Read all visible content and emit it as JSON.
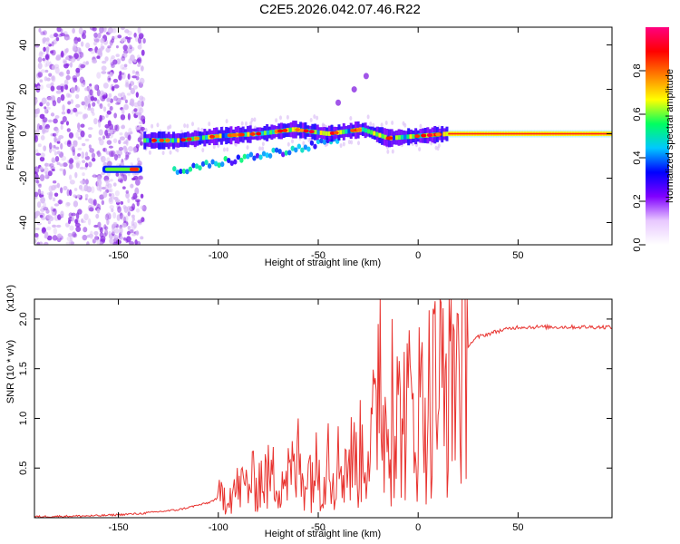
{
  "title": "C2E5.2026.042.07.46.R22",
  "chart_data": [
    {
      "type": "heatmap",
      "name": "spectrogram",
      "xlabel": "Height of straight line (km)",
      "ylabel": "Frequency (Hz)",
      "xlim": [
        -192,
        97
      ],
      "ylim": [
        -50,
        48
      ],
      "xticks": [
        -150,
        -100,
        -50,
        0,
        50
      ],
      "xtick_labels": [
        "-150",
        "-100",
        "-50",
        "0",
        "50"
      ],
      "yticks": [
        -40,
        -20,
        0,
        20,
        40
      ],
      "ytick_labels": [
        "-40",
        "-20",
        "0",
        "20",
        "40"
      ],
      "noise_region_x": [
        -192,
        -137
      ],
      "main_tone": [
        {
          "x": -137,
          "y": -3
        },
        {
          "x": -120,
          "y": -3
        },
        {
          "x": -100,
          "y": -1
        },
        {
          "x": -80,
          "y": 0
        },
        {
          "x": -62,
          "y": 2
        },
        {
          "x": -45,
          "y": 0
        },
        {
          "x": -28,
          "y": 2
        },
        {
          "x": -15,
          "y": -2
        },
        {
          "x": 0,
          "y": -1
        },
        {
          "x": 15,
          "y": 0
        },
        {
          "x": 97,
          "y": 0
        }
      ],
      "secondary_tone": [
        {
          "x": -120,
          "y": -17
        },
        {
          "x": -100,
          "y": -13
        },
        {
          "x": -80,
          "y": -10
        },
        {
          "x": -60,
          "y": -7
        },
        {
          "x": -42,
          "y": -3
        }
      ],
      "early_burst": {
        "x": [
          -158,
          -138
        ],
        "y": -16
      },
      "rising_feature": [
        {
          "x": -40,
          "y": 14
        },
        {
          "x": -32,
          "y": 20
        },
        {
          "x": -26,
          "y": 26
        }
      ],
      "colorbar": {
        "label": "Normalized spectral amplitude",
        "ticks": [
          "0.0",
          "0.2",
          "0.4",
          "0.6",
          "0.8"
        ],
        "range": [
          0,
          1
        ],
        "colors": [
          "#ffffff",
          "#e8c8ff",
          "#8000ff",
          "#0000ff",
          "#00c8ff",
          "#00ff60",
          "#ffff00",
          "#ff8000",
          "#ff0000",
          "#ff0080"
        ]
      }
    },
    {
      "type": "line",
      "name": "snr",
      "xlabel": "Height of straight line (km)",
      "ylabel": "SNR (10 * v/v)",
      "yscale_label": "(x10⁴)",
      "xlim": [
        -192,
        97
      ],
      "ylim": [
        0,
        2.2
      ],
      "xticks": [
        -150,
        -100,
        -50,
        0,
        50
      ],
      "xtick_labels": [
        "-150",
        "-100",
        "-50",
        "0",
        "50"
      ],
      "yticks": [
        0.5,
        1.0,
        1.5,
        2.0
      ],
      "ytick_labels": [
        "0.5",
        "1.0",
        "1.5",
        "2.0"
      ],
      "color": "#e8322e",
      "trend": [
        {
          "x": -192,
          "y": 0.01
        },
        {
          "x": -160,
          "y": 0.02
        },
        {
          "x": -140,
          "y": 0.04
        },
        {
          "x": -120,
          "y": 0.08
        },
        {
          "x": -105,
          "y": 0.15
        },
        {
          "x": -95,
          "y": 0.25
        },
        {
          "x": -80,
          "y": 0.38
        },
        {
          "x": -60,
          "y": 0.45
        },
        {
          "x": -45,
          "y": 0.5
        },
        {
          "x": -30,
          "y": 0.6
        },
        {
          "x": -20,
          "y": 0.9
        },
        {
          "x": -10,
          "y": 1.0
        },
        {
          "x": 0,
          "y": 1.1
        },
        {
          "x": 10,
          "y": 1.3
        },
        {
          "x": 20,
          "y": 1.65
        },
        {
          "x": 30,
          "y": 1.82
        },
        {
          "x": 40,
          "y": 1.88
        },
        {
          "x": 50,
          "y": 1.92
        },
        {
          "x": 97,
          "y": 1.92
        }
      ],
      "spikes": [
        {
          "x": -19,
          "y": 2.2
        },
        {
          "x": -13,
          "y": 2.0
        },
        {
          "x": -20,
          "y": 1.95
        },
        {
          "x": 8,
          "y": 2.05
        },
        {
          "x": -60,
          "y": 1.0
        },
        {
          "x": -45,
          "y": 0.95
        },
        {
          "x": 13,
          "y": 0.72
        }
      ]
    }
  ]
}
